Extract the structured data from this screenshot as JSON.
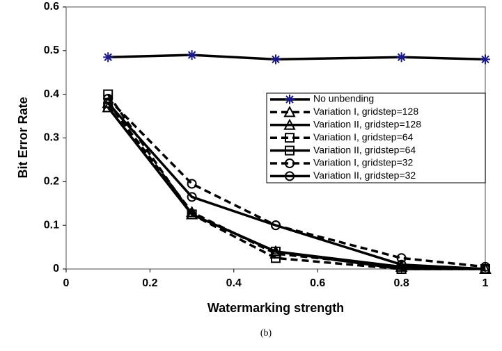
{
  "chart_data": {
    "type": "line",
    "x_label": "Watermarking strength",
    "y_label": "Bit Error Rate",
    "caption": "(b)",
    "x": [
      0.1,
      0.3,
      0.5,
      0.8,
      1
    ],
    "xlim": [
      0,
      1
    ],
    "xticks": [
      0,
      0.2,
      0.4,
      0.6,
      0.8,
      1
    ],
    "ylim": [
      0,
      0.6
    ],
    "yticks": [
      0,
      0.1,
      0.2,
      0.3,
      0.4,
      0.5,
      0.6
    ],
    "series": [
      {
        "name": "No unbending",
        "color": "#000000",
        "marker_color": "#1a1a8c",
        "marker": "star",
        "dash": false,
        "values": [
          0.485,
          0.49,
          0.48,
          0.485,
          0.48
        ]
      },
      {
        "name": "Variation I, gridstep=128",
        "color": "#000000",
        "marker_color": "#000000",
        "marker": "triangle",
        "dash": true,
        "values": [
          0.38,
          0.13,
          0.035,
          0.005,
          0
        ]
      },
      {
        "name": "Variation II, gridstep=128",
        "color": "#000000",
        "marker_color": "#000000",
        "marker": "triangle",
        "dash": false,
        "values": [
          0.37,
          0.125,
          0.04,
          0.005,
          0
        ]
      },
      {
        "name": "Variation I, gridstep=64",
        "color": "#000000",
        "marker_color": "#000000",
        "marker": "square",
        "dash": true,
        "values": [
          0.4,
          0.125,
          0.025,
          0,
          0
        ]
      },
      {
        "name": "Variation II, gridstep=64",
        "color": "#000000",
        "marker_color": "#000000",
        "marker": "square",
        "dash": false,
        "values": [
          0.37,
          0.125,
          0.04,
          0,
          0
        ]
      },
      {
        "name": "Variation I, gridstep=32",
        "color": "#000000",
        "marker_color": "#000000",
        "marker": "circle",
        "dash": true,
        "values": [
          0.39,
          0.195,
          0.1,
          0.025,
          0.005
        ]
      },
      {
        "name": "Variation II, gridstep=32",
        "color": "#000000",
        "marker_color": "#000000",
        "marker": "circle",
        "dash": false,
        "values": [
          0.38,
          0.165,
          0.1,
          0.01,
          0
        ]
      }
    ]
  }
}
